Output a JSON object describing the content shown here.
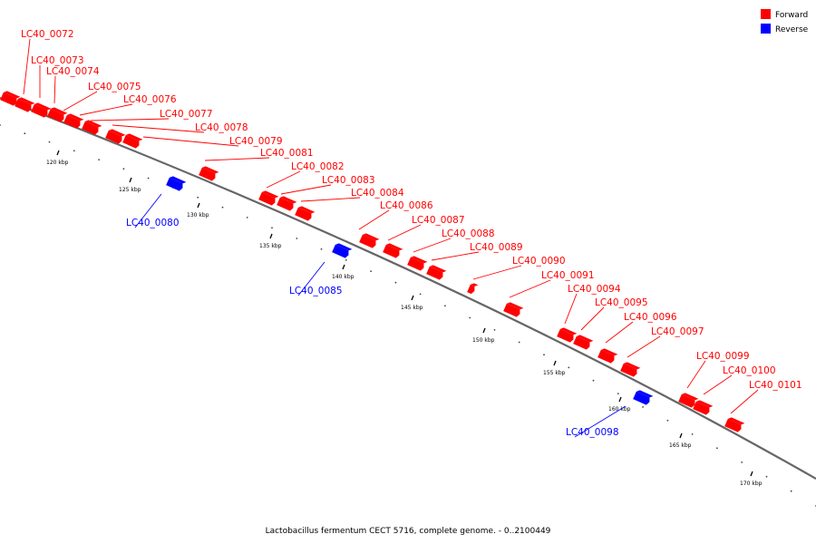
{
  "colors": {
    "forward": "#ff0000",
    "reverse": "#0000ff",
    "backbone": "#666666"
  },
  "legend": [
    {
      "label": "Forward",
      "color": "#ff0000"
    },
    {
      "label": "Reverse",
      "color": "#0000ff"
    }
  ],
  "caption": "Lactobacillus fermentum CECT 5716, complete genome. - 0..2100449",
  "ticks": [
    "120 kbp",
    "125 kbp",
    "130 kbp",
    "135 kbp",
    "140 kbp",
    "145 kbp",
    "150 kbp",
    "155 kbp",
    "160 kbp",
    "165 kbp",
    "170 kbp"
  ],
  "features": [
    {
      "name": "LC40_0072",
      "strand": "forward"
    },
    {
      "name": "LC40_0073",
      "strand": "forward"
    },
    {
      "name": "LC40_0074",
      "strand": "forward"
    },
    {
      "name": "LC40_0075",
      "strand": "forward"
    },
    {
      "name": "LC40_0076",
      "strand": "forward"
    },
    {
      "name": "LC40_0077",
      "strand": "forward"
    },
    {
      "name": "LC40_0078",
      "strand": "forward"
    },
    {
      "name": "LC40_0079",
      "strand": "forward"
    },
    {
      "name": "LC40_0080",
      "strand": "reverse"
    },
    {
      "name": "LC40_0081",
      "strand": "forward"
    },
    {
      "name": "LC40_0082",
      "strand": "forward"
    },
    {
      "name": "LC40_0083",
      "strand": "forward"
    },
    {
      "name": "LC40_0084",
      "strand": "forward"
    },
    {
      "name": "LC40_0085",
      "strand": "reverse"
    },
    {
      "name": "LC40_0086",
      "strand": "forward"
    },
    {
      "name": "LC40_0087",
      "strand": "forward"
    },
    {
      "name": "LC40_0088",
      "strand": "forward"
    },
    {
      "name": "LC40_0089",
      "strand": "forward"
    },
    {
      "name": "LC40_0090",
      "strand": "forward"
    },
    {
      "name": "LC40_0091",
      "strand": "forward"
    },
    {
      "name": "LC40_0094",
      "strand": "forward"
    },
    {
      "name": "LC40_0095",
      "strand": "forward"
    },
    {
      "name": "LC40_0096",
      "strand": "forward"
    },
    {
      "name": "LC40_0097",
      "strand": "forward"
    },
    {
      "name": "LC40_0098",
      "strand": "reverse"
    },
    {
      "name": "LC40_0099",
      "strand": "forward"
    },
    {
      "name": "LC40_0100",
      "strand": "forward"
    },
    {
      "name": "LC40_0101",
      "strand": "forward"
    }
  ]
}
